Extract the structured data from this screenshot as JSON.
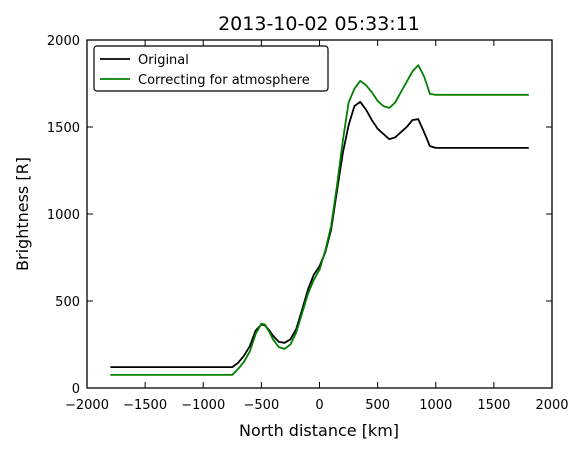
{
  "chart_data": {
    "type": "line",
    "title": "2013-10-02 05:33:11",
    "xlabel": "North distance [km]",
    "ylabel": "Brightness [R]",
    "xlim": [
      -2000,
      2000
    ],
    "ylim": [
      0,
      2000
    ],
    "xticks": [
      -2000,
      -1500,
      -1000,
      -500,
      0,
      500,
      1000,
      1500,
      2000
    ],
    "yticks": [
      0,
      500,
      1000,
      1500,
      2000
    ],
    "xtick_labels": [
      "−2000",
      "−1500",
      "−1000",
      "−500",
      "0",
      "500",
      "1000",
      "1500",
      "2000"
    ],
    "ytick_labels": [
      "0",
      "500",
      "1000",
      "1500",
      "2000"
    ],
    "grid": false,
    "legend_position": "top-left",
    "series": [
      {
        "name": "Original",
        "color": "#000000",
        "x": [
          -1800,
          -750,
          -700,
          -650,
          -600,
          -550,
          -500,
          -470,
          -430,
          -400,
          -350,
          -300,
          -250,
          -200,
          -150,
          -100,
          -50,
          0,
          50,
          100,
          150,
          200,
          250,
          300,
          350,
          400,
          450,
          500,
          550,
          600,
          650,
          700,
          750,
          800,
          850,
          900,
          950,
          1000,
          1800
        ],
        "y": [
          120,
          120,
          145,
          185,
          240,
          330,
          365,
          360,
          330,
          300,
          265,
          260,
          280,
          340,
          450,
          565,
          650,
          700,
          780,
          910,
          1130,
          1350,
          1510,
          1620,
          1645,
          1600,
          1540,
          1490,
          1460,
          1430,
          1440,
          1470,
          1500,
          1540,
          1545,
          1470,
          1390,
          1380,
          1380
        ]
      },
      {
        "name": "Correcting for atmosphere",
        "color": "#008000",
        "x": [
          -1800,
          -750,
          -700,
          -650,
          -600,
          -550,
          -500,
          -470,
          -430,
          -400,
          -350,
          -300,
          -250,
          -200,
          -150,
          -100,
          -50,
          0,
          50,
          100,
          150,
          200,
          250,
          300,
          350,
          400,
          450,
          500,
          550,
          600,
          650,
          700,
          750,
          800,
          850,
          900,
          950,
          1000,
          1800
        ],
        "y": [
          75,
          75,
          110,
          150,
          210,
          310,
          370,
          365,
          320,
          280,
          235,
          225,
          250,
          320,
          430,
          540,
          620,
          680,
          790,
          930,
          1160,
          1420,
          1640,
          1720,
          1765,
          1740,
          1700,
          1650,
          1620,
          1610,
          1640,
          1700,
          1760,
          1820,
          1855,
          1790,
          1690,
          1685,
          1685
        ]
      }
    ]
  }
}
